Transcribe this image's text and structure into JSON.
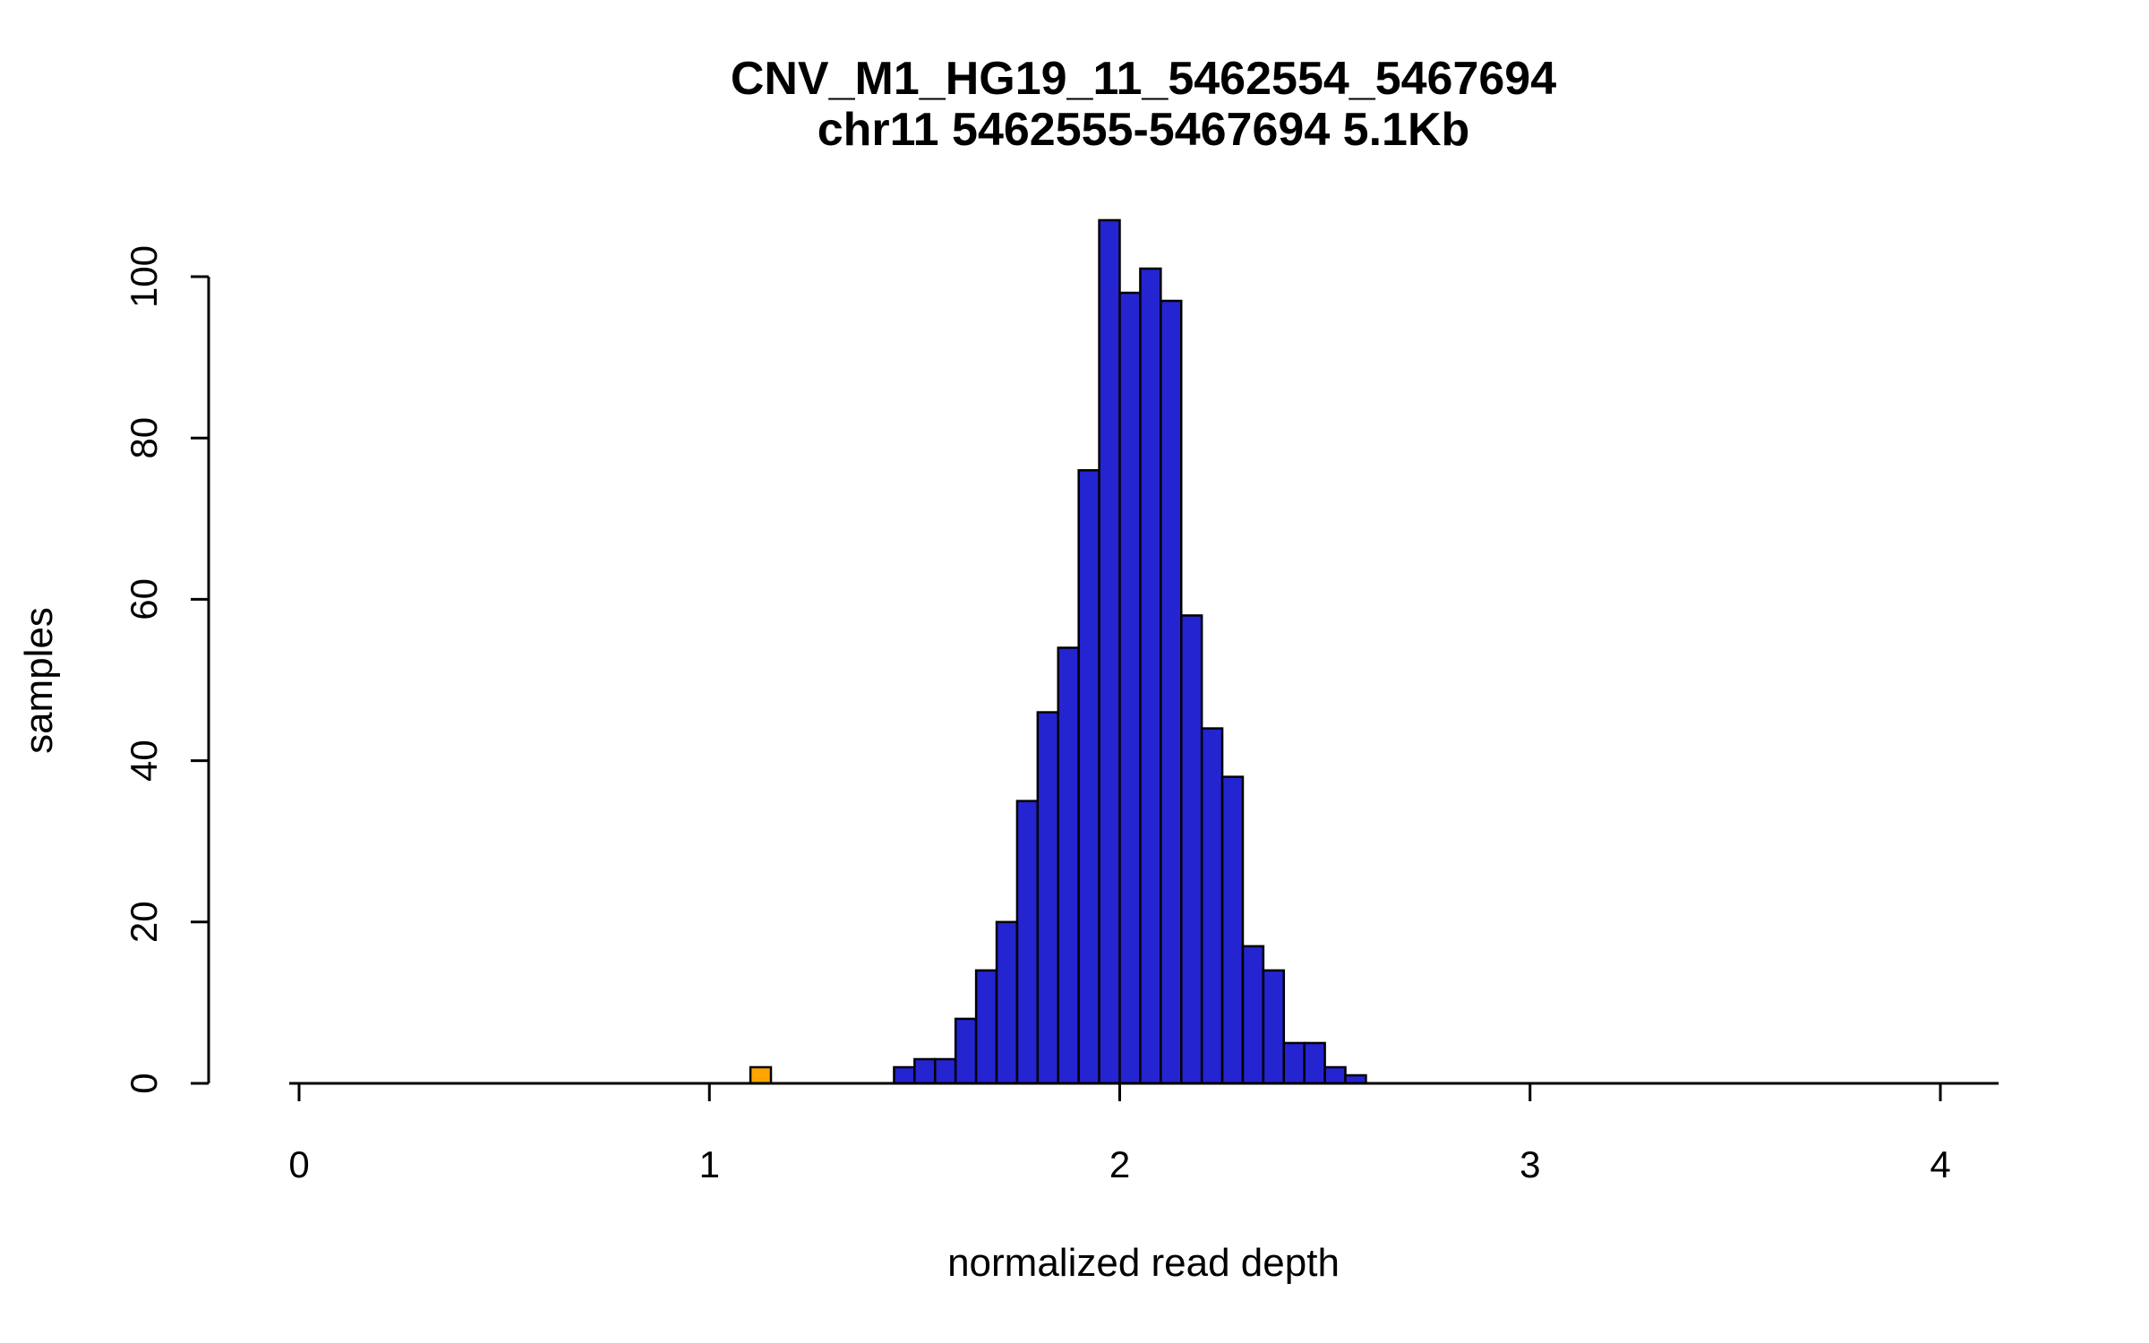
{
  "chart_data": {
    "type": "bar",
    "subtype": "histogram",
    "title": "CNV_M1_HG19_11_5462554_5467694",
    "subtitle": "chr11 5462555-5467694 5.1Kb",
    "xlabel": "normalized read depth",
    "ylabel": "samples",
    "x_ticks": [
      0,
      1,
      2,
      3,
      4
    ],
    "y_ticks": [
      0,
      20,
      40,
      60,
      80,
      100
    ],
    "xlim": [
      -0.024,
      4.142
    ],
    "ylim": [
      0,
      107
    ],
    "bin_width": 0.05,
    "grid": false,
    "legend": "none",
    "colors": {
      "bar_fill": "#2424D0",
      "outlier_fill": "#FFA500",
      "bar_stroke": "#000000",
      "axis": "#000000",
      "background": "#FFFFFF"
    },
    "bars": [
      {
        "bin_start": 1.1,
        "count": 2,
        "outlier": true
      },
      {
        "bin_start": 1.45,
        "count": 2
      },
      {
        "bin_start": 1.5,
        "count": 3
      },
      {
        "bin_start": 1.55,
        "count": 3
      },
      {
        "bin_start": 1.6,
        "count": 8
      },
      {
        "bin_start": 1.65,
        "count": 14
      },
      {
        "bin_start": 1.7,
        "count": 20
      },
      {
        "bin_start": 1.75,
        "count": 35
      },
      {
        "bin_start": 1.8,
        "count": 46
      },
      {
        "bin_start": 1.85,
        "count": 54
      },
      {
        "bin_start": 1.9,
        "count": 76
      },
      {
        "bin_start": 1.95,
        "count": 107
      },
      {
        "bin_start": 2.0,
        "count": 98
      },
      {
        "bin_start": 2.05,
        "count": 101
      },
      {
        "bin_start": 2.1,
        "count": 97
      },
      {
        "bin_start": 2.15,
        "count": 58
      },
      {
        "bin_start": 2.2,
        "count": 44
      },
      {
        "bin_start": 2.25,
        "count": 38
      },
      {
        "bin_start": 2.3,
        "count": 17
      },
      {
        "bin_start": 2.35,
        "count": 14
      },
      {
        "bin_start": 2.4,
        "count": 5
      },
      {
        "bin_start": 2.45,
        "count": 5
      },
      {
        "bin_start": 2.5,
        "count": 2
      },
      {
        "bin_start": 2.55,
        "count": 1
      }
    ]
  }
}
